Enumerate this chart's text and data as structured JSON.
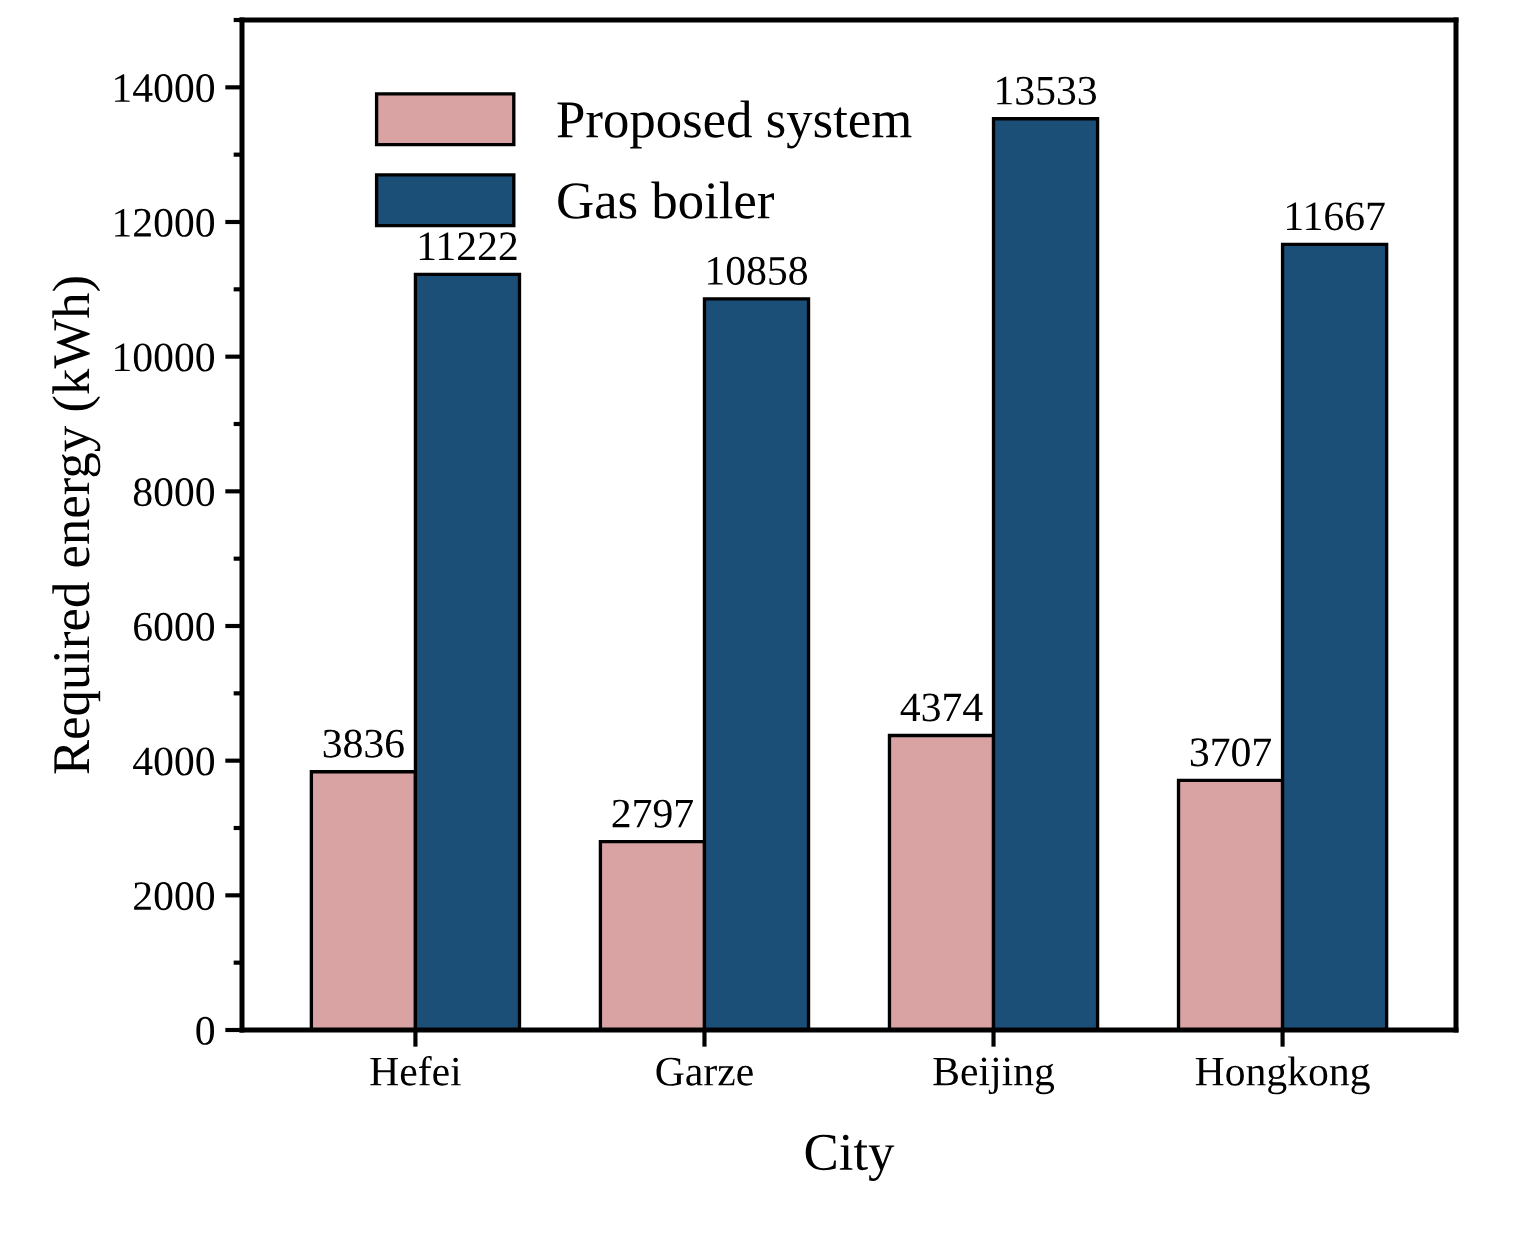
{
  "chart_data": {
    "type": "bar",
    "xlabel": "City",
    "ylabel": "Required energy (kWh)",
    "categories": [
      "Hefei",
      "Garze",
      "Beijing",
      "Hongkong"
    ],
    "series": [
      {
        "name": "Proposed system",
        "color": "#d9a3a3",
        "values": [
          3836,
          2797,
          4374,
          3707
        ]
      },
      {
        "name": "Gas boiler",
        "color": "#1c4f78",
        "values": [
          11222,
          10858,
          13533,
          11667
        ]
      }
    ],
    "ylim": [
      0,
      15000
    ],
    "yticks": [
      0,
      2000,
      4000,
      6000,
      8000,
      10000,
      12000,
      14000
    ],
    "data_labels": true,
    "legend": "top left",
    "grid": false
  }
}
